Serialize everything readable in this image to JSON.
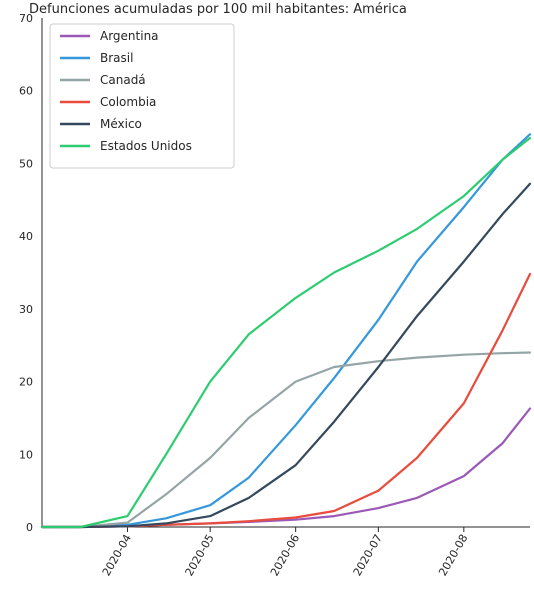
{
  "chart_data": {
    "type": "line",
    "title": "Defunciones acumuladas por 100 mil habitantes: América",
    "xlabel": "",
    "ylabel": "",
    "x": [
      "2020-03-01",
      "2020-03-15",
      "2020-04-01",
      "2020-04-15",
      "2020-05-01",
      "2020-05-15",
      "2020-06-01",
      "2020-06-15",
      "2020-07-01",
      "2020-07-15",
      "2020-08-01",
      "2020-08-15",
      "2020-08-25"
    ],
    "xticks": [
      "2020-04",
      "2020-05",
      "2020-06",
      "2020-07",
      "2020-08"
    ],
    "xlim": [
      "2020-03-01",
      "2020-08-25"
    ],
    "ylim": [
      0,
      70
    ],
    "yticks": [
      0,
      10,
      20,
      30,
      40,
      50,
      60,
      70
    ],
    "grid": false,
    "legend_position": "top-left",
    "series": [
      {
        "name": "Argentina",
        "color": "#9b59b6",
        "values": [
          0,
          0,
          0.1,
          0.3,
          0.5,
          0.7,
          1.0,
          1.5,
          2.6,
          4.0,
          7.0,
          11.5,
          16.3
        ]
      },
      {
        "name": "Brasil",
        "color": "#3498db",
        "values": [
          0,
          0,
          0.3,
          1.2,
          3.0,
          6.8,
          14.0,
          20.5,
          28.5,
          36.5,
          44.0,
          50.5,
          54.0
        ]
      },
      {
        "name": "Canadá",
        "color": "#95a5a6",
        "values": [
          0,
          0,
          0.6,
          4.5,
          9.5,
          15.0,
          20.0,
          22.0,
          22.8,
          23.3,
          23.7,
          23.9,
          24.0
        ]
      },
      {
        "name": "Colombia",
        "color": "#e74c3c",
        "values": [
          0,
          0,
          0.1,
          0.3,
          0.5,
          0.8,
          1.3,
          2.2,
          5.0,
          9.5,
          17.0,
          27.0,
          34.8
        ]
      },
      {
        "name": "México",
        "color": "#34495e",
        "values": [
          0,
          0,
          0.1,
          0.5,
          1.5,
          4.0,
          8.5,
          14.5,
          22.0,
          29.0,
          36.5,
          43.0,
          47.2
        ]
      },
      {
        "name": "Estados Unidos",
        "color": "#2ecc71",
        "values": [
          0,
          0,
          1.5,
          10.0,
          20.0,
          26.5,
          31.5,
          35.0,
          38.0,
          41.0,
          45.5,
          50.5,
          53.5
        ]
      }
    ]
  }
}
